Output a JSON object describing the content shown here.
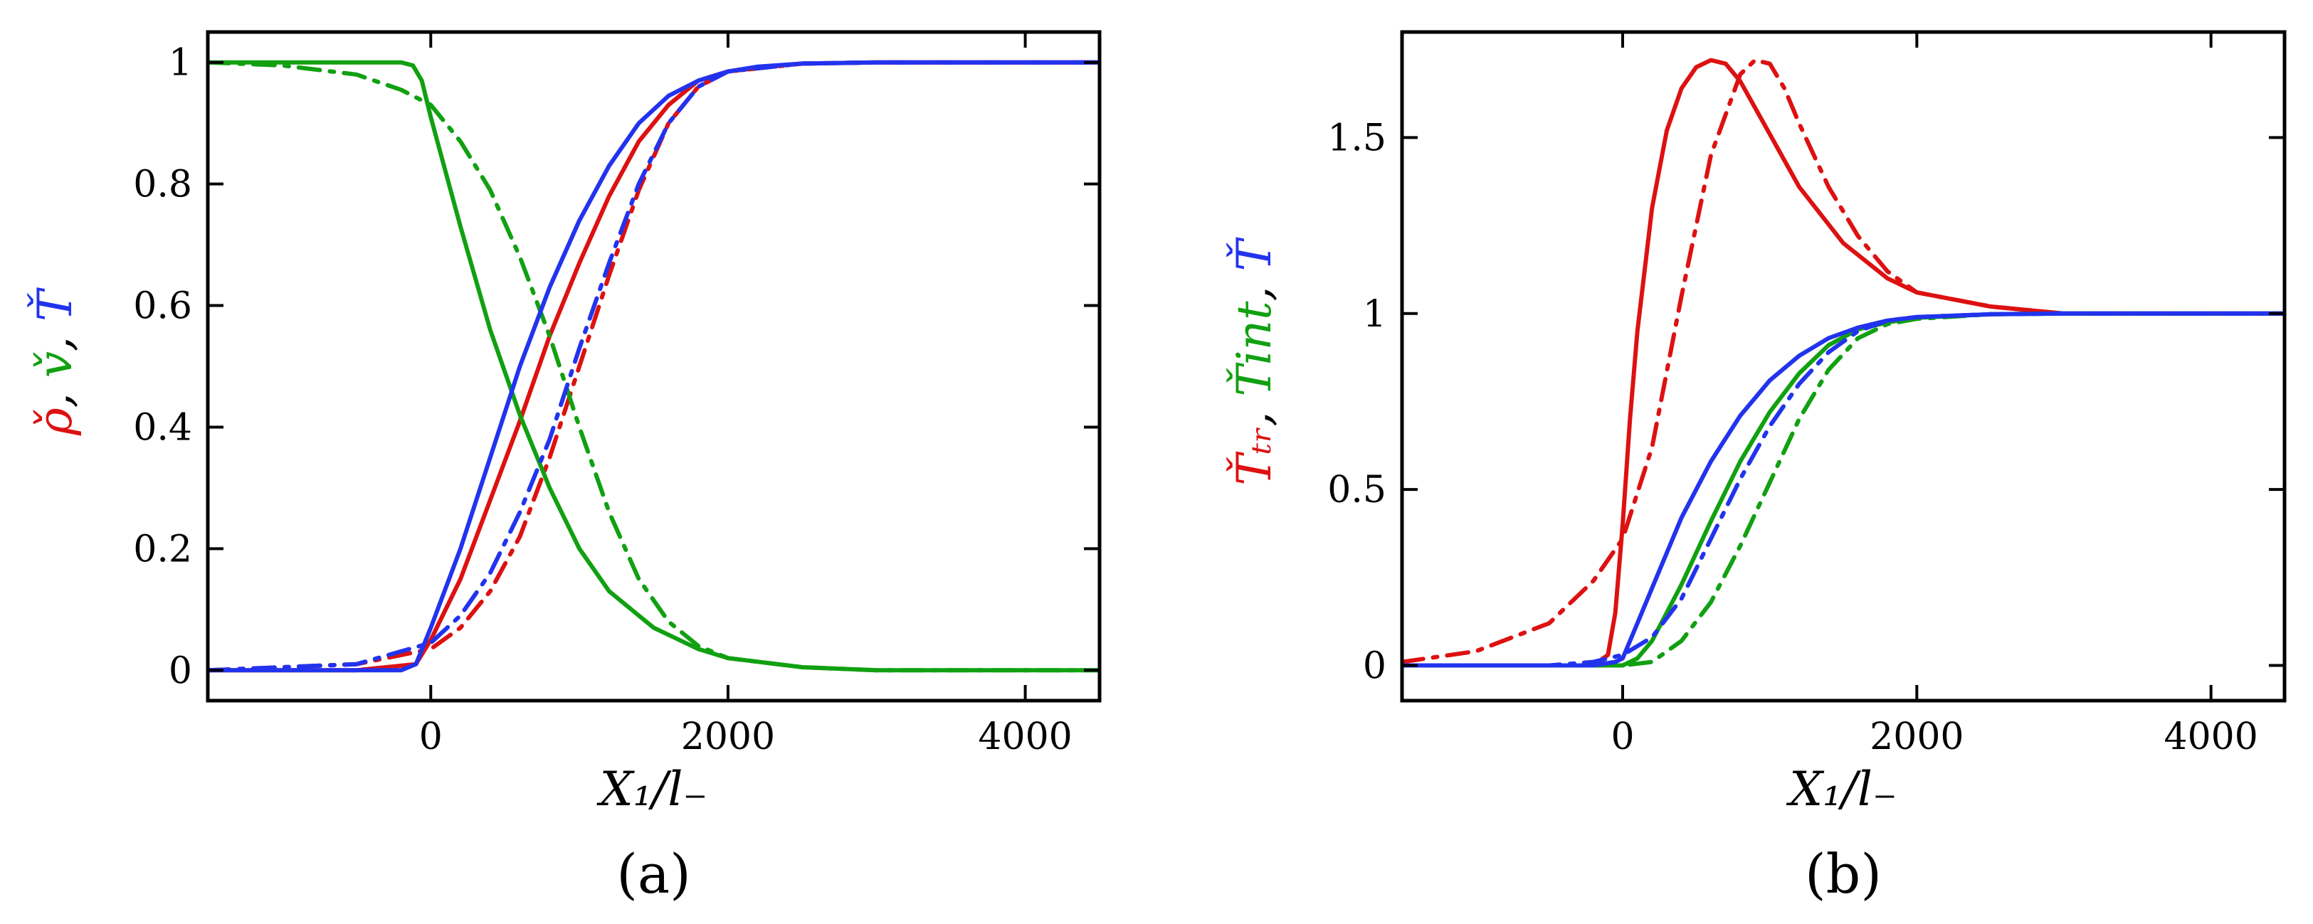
{
  "chart_data": [
    {
      "id": "a",
      "type": "line",
      "panel_label": "(a)",
      "xlabel": "X₁/l₋",
      "ylabel_parts": [
        {
          "text": "ρ̌",
          "color": "#dd1111"
        },
        {
          "text": ", ",
          "color": "#000000"
        },
        {
          "text": "v̌",
          "color": "#11a011"
        },
        {
          "text": ", ",
          "color": "#000000"
        },
        {
          "text": "Ť",
          "color": "#2233ee"
        }
      ],
      "xlim": [
        -1500,
        4500
      ],
      "ylim": [
        -0.05,
        1.05
      ],
      "xticks": [
        0,
        2000,
        4000
      ],
      "xtick_labels": [
        "0",
        "2000",
        "4000"
      ],
      "yticks": [
        0,
        0.2,
        0.4,
        0.6,
        0.8,
        1
      ],
      "ytick_labels": [
        "0",
        "0.2",
        "0.4",
        "0.6",
        "0.8",
        "1"
      ],
      "series": [
        {
          "name": "rho-solid",
          "color": "#dd1111",
          "style": "solid",
          "x": [
            -1500,
            -500,
            -100,
            0,
            200,
            400,
            600,
            800,
            1000,
            1200,
            1400,
            1600,
            1800,
            2000,
            2200,
            2500,
            3000,
            4500
          ],
          "y": [
            0,
            0,
            0.01,
            0.05,
            0.15,
            0.28,
            0.41,
            0.55,
            0.67,
            0.78,
            0.87,
            0.93,
            0.97,
            0.985,
            0.992,
            0.998,
            1,
            1
          ]
        },
        {
          "name": "rho-dashdot",
          "color": "#dd1111",
          "style": "dashdot",
          "x": [
            -1500,
            -500,
            0,
            200,
            400,
            600,
            800,
            1000,
            1200,
            1400,
            1600,
            1800,
            2000,
            2500,
            3000,
            4500
          ],
          "y": [
            0,
            0.01,
            0.035,
            0.07,
            0.13,
            0.22,
            0.35,
            0.5,
            0.65,
            0.79,
            0.9,
            0.96,
            0.985,
            0.998,
            1,
            1
          ]
        },
        {
          "name": "v-solid",
          "color": "#11a011",
          "style": "solid",
          "x": [
            -1500,
            -200,
            -120,
            -60,
            0,
            100,
            200,
            400,
            600,
            800,
            1000,
            1200,
            1500,
            1800,
            2000,
            2500,
            3000,
            4500
          ],
          "y": [
            1,
            1,
            0.995,
            0.97,
            0.91,
            0.82,
            0.73,
            0.56,
            0.42,
            0.3,
            0.2,
            0.13,
            0.07,
            0.035,
            0.02,
            0.005,
            0,
            0
          ]
        },
        {
          "name": "v-dashdot",
          "color": "#11a011",
          "style": "dashdot",
          "x": [
            -1500,
            -1000,
            -500,
            -200,
            0,
            200,
            400,
            600,
            800,
            1000,
            1200,
            1400,
            1600,
            1800,
            2000,
            2500,
            3000,
            4500
          ],
          "y": [
            1,
            0.995,
            0.98,
            0.955,
            0.93,
            0.87,
            0.79,
            0.68,
            0.55,
            0.4,
            0.26,
            0.15,
            0.08,
            0.04,
            0.02,
            0.005,
            0,
            0
          ]
        },
        {
          "name": "T-solid",
          "color": "#2233ee",
          "style": "solid",
          "x": [
            -1500,
            -200,
            -100,
            0,
            200,
            400,
            600,
            800,
            1000,
            1200,
            1400,
            1600,
            1800,
            2000,
            2200,
            2500,
            3000,
            4500
          ],
          "y": [
            0,
            0,
            0.01,
            0.07,
            0.2,
            0.35,
            0.5,
            0.63,
            0.74,
            0.83,
            0.9,
            0.945,
            0.97,
            0.985,
            0.993,
            0.998,
            1,
            1
          ]
        },
        {
          "name": "T-dashdot",
          "color": "#2233ee",
          "style": "dashdot",
          "x": [
            -1500,
            -500,
            0,
            200,
            400,
            600,
            800,
            1000,
            1200,
            1400,
            1600,
            1800,
            2000,
            2500,
            3000,
            4500
          ],
          "y": [
            0,
            0.01,
            0.045,
            0.09,
            0.16,
            0.26,
            0.38,
            0.53,
            0.67,
            0.8,
            0.9,
            0.96,
            0.985,
            0.998,
            1,
            1
          ]
        }
      ]
    },
    {
      "id": "b",
      "type": "line",
      "panel_label": "(b)",
      "xlabel": "X₁/l₋",
      "ylabel_parts": [
        {
          "text": "Ťₜᵣ",
          "color": "#dd1111"
        },
        {
          "text": ", ",
          "color": "#000000"
        },
        {
          "text": "Ťint",
          "color": "#11a011"
        },
        {
          "text": ", ",
          "color": "#000000"
        },
        {
          "text": "Ť",
          "color": "#2233ee"
        }
      ],
      "xlim": [
        -1500,
        4500
      ],
      "ylim": [
        -0.1,
        1.8
      ],
      "xticks": [
        0,
        2000,
        4000
      ],
      "xtick_labels": [
        "0",
        "2000",
        "4000"
      ],
      "yticks": [
        0,
        0.5,
        1,
        1.5
      ],
      "ytick_labels": [
        "0",
        "0.5",
        "1",
        "1.5"
      ],
      "series": [
        {
          "name": "Ttr-solid",
          "color": "#dd1111",
          "style": "solid",
          "x": [
            -1500,
            -200,
            -100,
            -50,
            0,
            50,
            100,
            200,
            300,
            400,
            500,
            600,
            700,
            800,
            1000,
            1200,
            1500,
            1800,
            2000,
            2500,
            3000,
            4500
          ],
          "y": [
            0,
            0,
            0.03,
            0.15,
            0.4,
            0.7,
            0.95,
            1.3,
            1.52,
            1.64,
            1.7,
            1.72,
            1.71,
            1.66,
            1.51,
            1.36,
            1.2,
            1.1,
            1.06,
            1.02,
            1,
            1
          ]
        },
        {
          "name": "Ttr-dashdot",
          "color": "#dd1111",
          "style": "dashdot",
          "x": [
            -1500,
            -1000,
            -500,
            -200,
            0,
            200,
            400,
            600,
            800,
            900,
            1000,
            1100,
            1200,
            1400,
            1600,
            1800,
            2000,
            2500,
            3000,
            4500
          ],
          "y": [
            0.01,
            0.04,
            0.12,
            0.24,
            0.36,
            0.62,
            1.05,
            1.45,
            1.68,
            1.72,
            1.71,
            1.64,
            1.54,
            1.36,
            1.22,
            1.12,
            1.06,
            1.02,
            1,
            1
          ]
        },
        {
          "name": "Tint-solid",
          "color": "#11a011",
          "style": "solid",
          "x": [
            -1500,
            0,
            100,
            200,
            400,
            600,
            800,
            1000,
            1200,
            1400,
            1600,
            1800,
            2000,
            2500,
            3000,
            4500
          ],
          "y": [
            0,
            0,
            0.02,
            0.07,
            0.23,
            0.41,
            0.58,
            0.72,
            0.83,
            0.91,
            0.955,
            0.975,
            0.988,
            0.998,
            1,
            1
          ]
        },
        {
          "name": "Tint-dashdot",
          "color": "#11a011",
          "style": "dashdot",
          "x": [
            -1500,
            0,
            200,
            400,
            600,
            800,
            1000,
            1200,
            1400,
            1600,
            1800,
            2000,
            2500,
            3000,
            4500
          ],
          "y": [
            0,
            0,
            0.01,
            0.07,
            0.18,
            0.34,
            0.52,
            0.7,
            0.84,
            0.93,
            0.97,
            0.985,
            0.998,
            1,
            1
          ]
        },
        {
          "name": "T-solid",
          "color": "#2233ee",
          "style": "solid",
          "x": [
            -1500,
            -200,
            -50,
            0,
            100,
            200,
            400,
            600,
            800,
            1000,
            1200,
            1400,
            1600,
            1800,
            2000,
            2500,
            3000,
            4500
          ],
          "y": [
            0,
            0,
            0.01,
            0.02,
            0.12,
            0.22,
            0.42,
            0.58,
            0.71,
            0.81,
            0.88,
            0.93,
            0.96,
            0.98,
            0.99,
            0.998,
            1,
            1
          ]
        },
        {
          "name": "T-dashdot",
          "color": "#2233ee",
          "style": "dashdot",
          "x": [
            -1500,
            -500,
            -200,
            0,
            200,
            400,
            600,
            800,
            1000,
            1200,
            1400,
            1600,
            1800,
            2000,
            2500,
            3000,
            4500
          ],
          "y": [
            0,
            0,
            0.01,
            0.03,
            0.08,
            0.19,
            0.36,
            0.53,
            0.68,
            0.8,
            0.89,
            0.95,
            0.98,
            0.99,
            0.998,
            1,
            1
          ]
        }
      ]
    }
  ]
}
